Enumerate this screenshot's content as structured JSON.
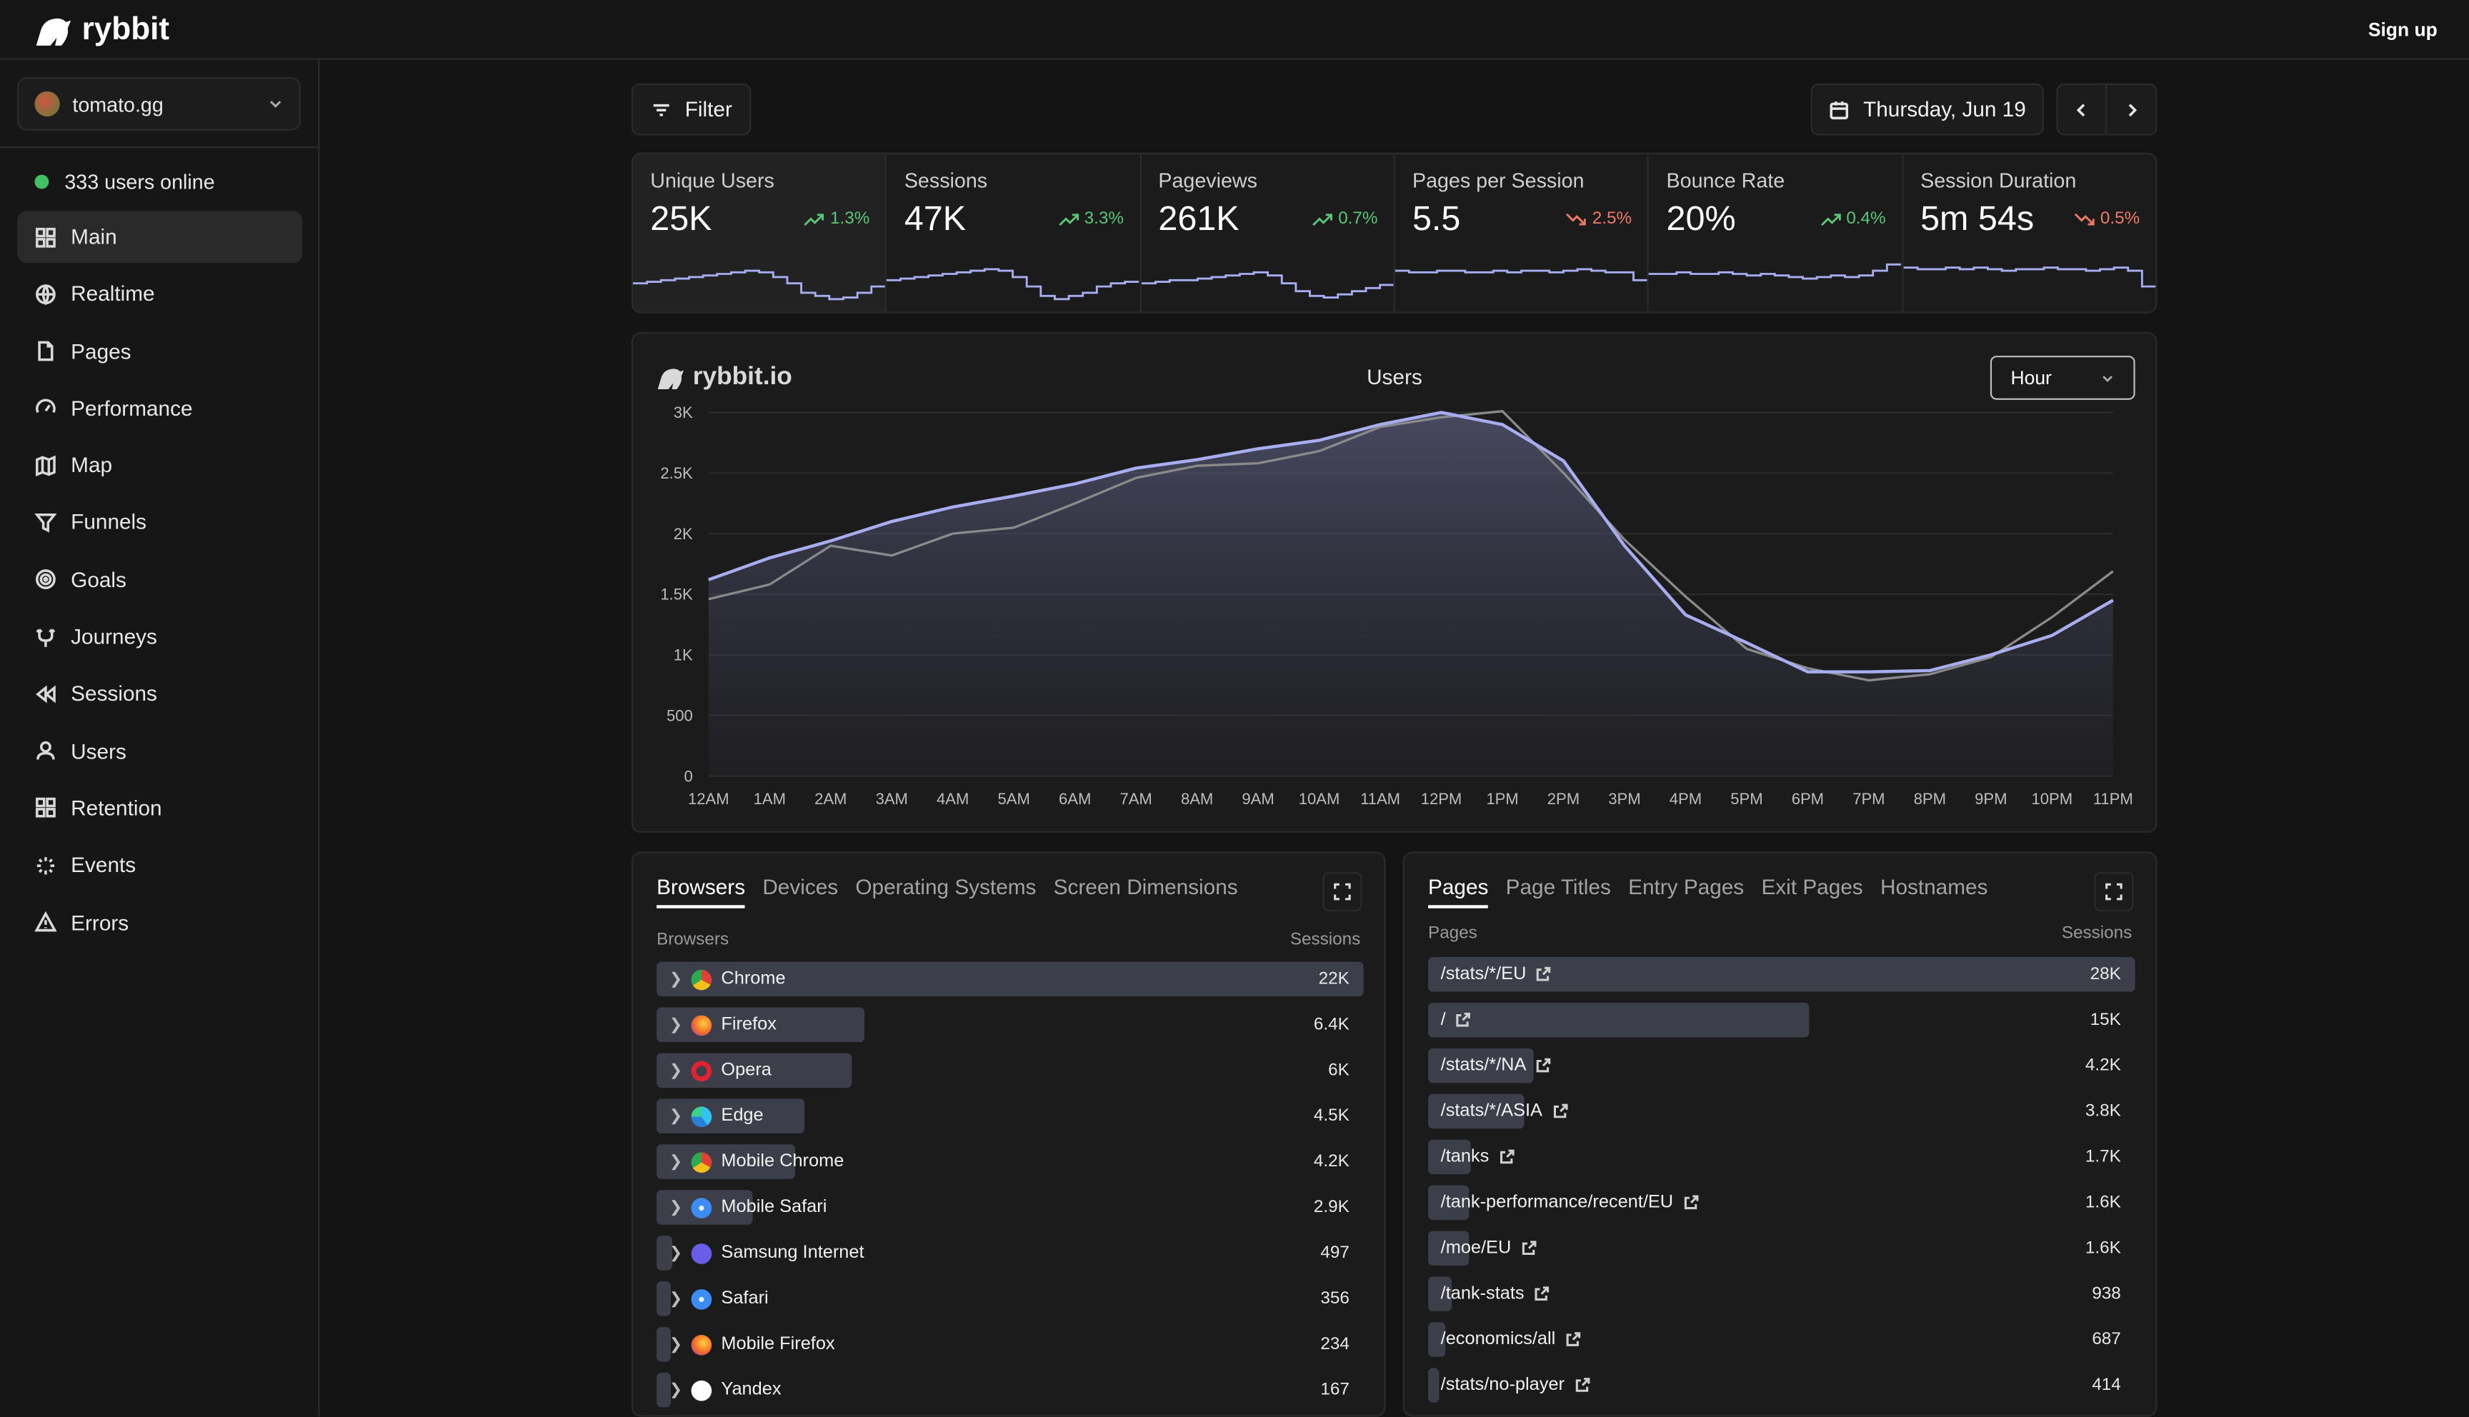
{
  "app": {
    "brand": "rybbit",
    "signup": "Sign up"
  },
  "sidebar": {
    "site": "tomato.gg",
    "online": "333 users online",
    "items": [
      {
        "label": "Main",
        "icon": "grid-icon"
      },
      {
        "label": "Realtime",
        "icon": "globe-icon"
      },
      {
        "label": "Pages",
        "icon": "file-icon"
      },
      {
        "label": "Performance",
        "icon": "gauge-icon"
      },
      {
        "label": "Map",
        "icon": "map-icon"
      },
      {
        "label": "Funnels",
        "icon": "funnel-icon"
      },
      {
        "label": "Goals",
        "icon": "target-icon"
      },
      {
        "label": "Journeys",
        "icon": "split-icon"
      },
      {
        "label": "Sessions",
        "icon": "rewind-icon"
      },
      {
        "label": "Users",
        "icon": "user-icon"
      },
      {
        "label": "Retention",
        "icon": "grid-icon"
      },
      {
        "label": "Events",
        "icon": "sparkle-icon"
      },
      {
        "label": "Errors",
        "icon": "warning-icon"
      }
    ]
  },
  "toolbar": {
    "filter": "Filter",
    "date": "Thursday, Jun 19"
  },
  "stats": [
    {
      "label": "Unique Users",
      "value": "25K",
      "change": "1.3%",
      "dir": "up"
    },
    {
      "label": "Sessions",
      "value": "47K",
      "change": "3.3%",
      "dir": "up"
    },
    {
      "label": "Pageviews",
      "value": "261K",
      "change": "0.7%",
      "dir": "up"
    },
    {
      "label": "Pages per Session",
      "value": "5.5",
      "change": "2.5%",
      "dir": "down"
    },
    {
      "label": "Bounce Rate",
      "value": "20%",
      "change": "0.4%",
      "dir": "up"
    },
    {
      "label": "Session Duration",
      "value": "5m 54s",
      "change": "0.5%",
      "dir": "down"
    }
  ],
  "chart": {
    "logo": "rybbit.io",
    "title": "Users",
    "interval": "Hour"
  },
  "chart_data": {
    "type": "area",
    "title": "Users",
    "x": [
      "12AM",
      "1AM",
      "2AM",
      "3AM",
      "4AM",
      "5AM",
      "6AM",
      "7AM",
      "8AM",
      "9AM",
      "10AM",
      "11AM",
      "12PM",
      "1PM",
      "2PM",
      "3PM",
      "4PM",
      "5PM",
      "6PM",
      "7PM",
      "8PM",
      "9PM",
      "10PM",
      "11PM"
    ],
    "yticks": [
      "0",
      "500",
      "1K",
      "1.5K",
      "2K",
      "2.5K",
      "3K"
    ],
    "ylim": [
      0,
      3000
    ],
    "series": [
      {
        "values": [
          1620,
          1800,
          1940,
          2100,
          2220,
          2310,
          2410,
          2540,
          2610,
          2700,
          2770,
          2900,
          3000,
          2900,
          2600,
          1900,
          1330,
          1100,
          860,
          860,
          870,
          1000,
          1160,
          1450
        ]
      },
      {
        "values": [
          1460,
          1580,
          1900,
          1820,
          2000,
          2050,
          2250,
          2460,
          2560,
          2580,
          2680,
          2880,
          2960,
          3010,
          2500,
          1950,
          1480,
          1050,
          890,
          790,
          840,
          980,
          1310,
          1690
        ]
      }
    ],
    "grid": true,
    "colors": {
      "current": "#a8adf0",
      "previous": "#8a8a8a"
    }
  },
  "browsers_panel": {
    "tabs": [
      "Browsers",
      "Devices",
      "Operating Systems",
      "Screen Dimensions"
    ],
    "col_left": "Browsers",
    "col_right": "Sessions",
    "rows": [
      {
        "label": "Chrome",
        "value": "22K",
        "icon": "chrome-icon",
        "pct": 1.0
      },
      {
        "label": "Firefox",
        "value": "6.4K",
        "icon": "firefox-icon",
        "pct": 0.295
      },
      {
        "label": "Opera",
        "value": "6K",
        "icon": "opera-icon",
        "pct": 0.277
      },
      {
        "label": "Edge",
        "value": "4.5K",
        "icon": "edge-icon",
        "pct": 0.209
      },
      {
        "label": "Mobile Chrome",
        "value": "4.2K",
        "icon": "chrome-icon",
        "pct": 0.195
      },
      {
        "label": "Mobile Safari",
        "value": "2.9K",
        "icon": "safari-icon",
        "pct": 0.135
      },
      {
        "label": "Samsung Internet",
        "value": "497",
        "icon": "samsung-icon",
        "pct": 0.023
      },
      {
        "label": "Safari",
        "value": "356",
        "icon": "safari-icon",
        "pct": 0.017
      },
      {
        "label": "Mobile Firefox",
        "value": "234",
        "icon": "firefox-icon",
        "pct": 0.011
      },
      {
        "label": "Yandex",
        "value": "167",
        "icon": "yandex-icon",
        "pct": 0.008
      }
    ]
  },
  "pages_panel": {
    "tabs": [
      "Pages",
      "Page Titles",
      "Entry Pages",
      "Exit Pages",
      "Hostnames"
    ],
    "col_left": "Pages",
    "col_right": "Sessions",
    "rows": [
      {
        "label": "/stats/*/EU",
        "value": "28K",
        "pct": 1.0
      },
      {
        "label": "/",
        "value": "15K",
        "pct": 0.54
      },
      {
        "label": "/stats/*/NA",
        "value": "4.2K",
        "pct": 0.15
      },
      {
        "label": "/stats/*/ASIA",
        "value": "3.8K",
        "pct": 0.136
      },
      {
        "label": "/tanks",
        "value": "1.7K",
        "pct": 0.061
      },
      {
        "label": "/tank-performance/recent/EU",
        "value": "1.6K",
        "pct": 0.057
      },
      {
        "label": "/moe/EU",
        "value": "1.6K",
        "pct": 0.057
      },
      {
        "label": "/tank-stats",
        "value": "938",
        "pct": 0.034
      },
      {
        "label": "/economics/all",
        "value": "687",
        "pct": 0.025
      },
      {
        "label": "/stats/no-player",
        "value": "414",
        "pct": 0.015
      }
    ]
  }
}
